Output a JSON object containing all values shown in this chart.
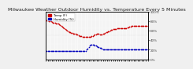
{
  "title": "Milwaukee Weather Outdoor Humidity vs. Temperature Every 5 Minutes",
  "background_color": "#f0f0f0",
  "plot_bg_color": "#f8f8f8",
  "grid_color": "#cccccc",
  "red_color": "#cc0000",
  "blue_color": "#0000bb",
  "temp_x": [
    0,
    1,
    2,
    3,
    4,
    5,
    6,
    7,
    8,
    9,
    10,
    11,
    12,
    13,
    14,
    15,
    16,
    17,
    18,
    19,
    20,
    21,
    22,
    23,
    24,
    25,
    26,
    27,
    28,
    29,
    30,
    31,
    32,
    33,
    34,
    35,
    36,
    37,
    38,
    39,
    40,
    41,
    42,
    43,
    44,
    45,
    46,
    47,
    48,
    49,
    50,
    51,
    52,
    53,
    54,
    55,
    56,
    57,
    58,
    59,
    60,
    61,
    62,
    63,
    64,
    65,
    66,
    67,
    68,
    69,
    70,
    71,
    72,
    73,
    74,
    75,
    76,
    77,
    78,
    79,
    80,
    81,
    82,
    83,
    84,
    85,
    86,
    87,
    88,
    89,
    90,
    91,
    92,
    93,
    94,
    95,
    96,
    97,
    98,
    99,
    100
  ],
  "temp_y": [
    82,
    82,
    81,
    80,
    80,
    79,
    78,
    77,
    76,
    76,
    75,
    75,
    74,
    73,
    71,
    70,
    68,
    67,
    65,
    63,
    61,
    60,
    58,
    57,
    56,
    55,
    55,
    54,
    54,
    53,
    52,
    51,
    50,
    49,
    48,
    48,
    47,
    47,
    46,
    46,
    46,
    46,
    46,
    47,
    47,
    48,
    49,
    50,
    51,
    52,
    53,
    53,
    53,
    52,
    52,
    52,
    53,
    54,
    55,
    56,
    57,
    58,
    59,
    60,
    61,
    62,
    63,
    63,
    64,
    64,
    65,
    65,
    65,
    65,
    65,
    65,
    65,
    65,
    65,
    65,
    66,
    67,
    68,
    68,
    69,
    69,
    70,
    70,
    70,
    70,
    70,
    70,
    70,
    70,
    70,
    70,
    70,
    70,
    70,
    70,
    70
  ],
  "hum_x": [
    0,
    1,
    2,
    3,
    4,
    5,
    6,
    7,
    8,
    9,
    10,
    11,
    12,
    13,
    14,
    15,
    16,
    17,
    18,
    19,
    20,
    21,
    22,
    23,
    24,
    25,
    26,
    27,
    28,
    29,
    30,
    31,
    32,
    33,
    34,
    35,
    36,
    37,
    38,
    39,
    40,
    41,
    42,
    43,
    44,
    45,
    46,
    47,
    48,
    49,
    50,
    51,
    52,
    53,
    54,
    55,
    56,
    57,
    58,
    59,
    60,
    61,
    62,
    63,
    64,
    65,
    66,
    67,
    68,
    69,
    70,
    71,
    72,
    73,
    74,
    75,
    76,
    77,
    78,
    79,
    80,
    81,
    82,
    83,
    84,
    85,
    86,
    87,
    88,
    89,
    90,
    91,
    92,
    93,
    94,
    95,
    96,
    97,
    98,
    99,
    100
  ],
  "hum_y": [
    18,
    18,
    18,
    18,
    18,
    18,
    18,
    18,
    18,
    18,
    18,
    18,
    18,
    18,
    18,
    18,
    18,
    18,
    18,
    18,
    18,
    18,
    18,
    18,
    18,
    18,
    18,
    18,
    18,
    18,
    18,
    18,
    18,
    18,
    18,
    18,
    18,
    18,
    18,
    18,
    20,
    22,
    25,
    28,
    30,
    31,
    31,
    30,
    29,
    28,
    27,
    26,
    25,
    24,
    23,
    22,
    21,
    21,
    21,
    21,
    21,
    21,
    21,
    21,
    21,
    21,
    21,
    21,
    21,
    21,
    21,
    21,
    21,
    21,
    21,
    21,
    21,
    21,
    21,
    21,
    21,
    21,
    21,
    21,
    21,
    21,
    21,
    21,
    21,
    21,
    21,
    21,
    21,
    21,
    21,
    21,
    21,
    21,
    21,
    21,
    21
  ],
  "xlim": [
    0,
    100
  ],
  "ylim": [
    0,
    100
  ],
  "right_yticks": [
    0,
    20,
    40,
    60,
    80,
    100
  ],
  "right_yticklabels": [
    "0%",
    "20%",
    "40%",
    "60%",
    "80%",
    "100%"
  ],
  "legend_labels": [
    "Temp (F)",
    "Humidity (%)"
  ],
  "title_fontsize": 4.5,
  "tick_fontsize": 3.0,
  "marker_size": 1.5
}
